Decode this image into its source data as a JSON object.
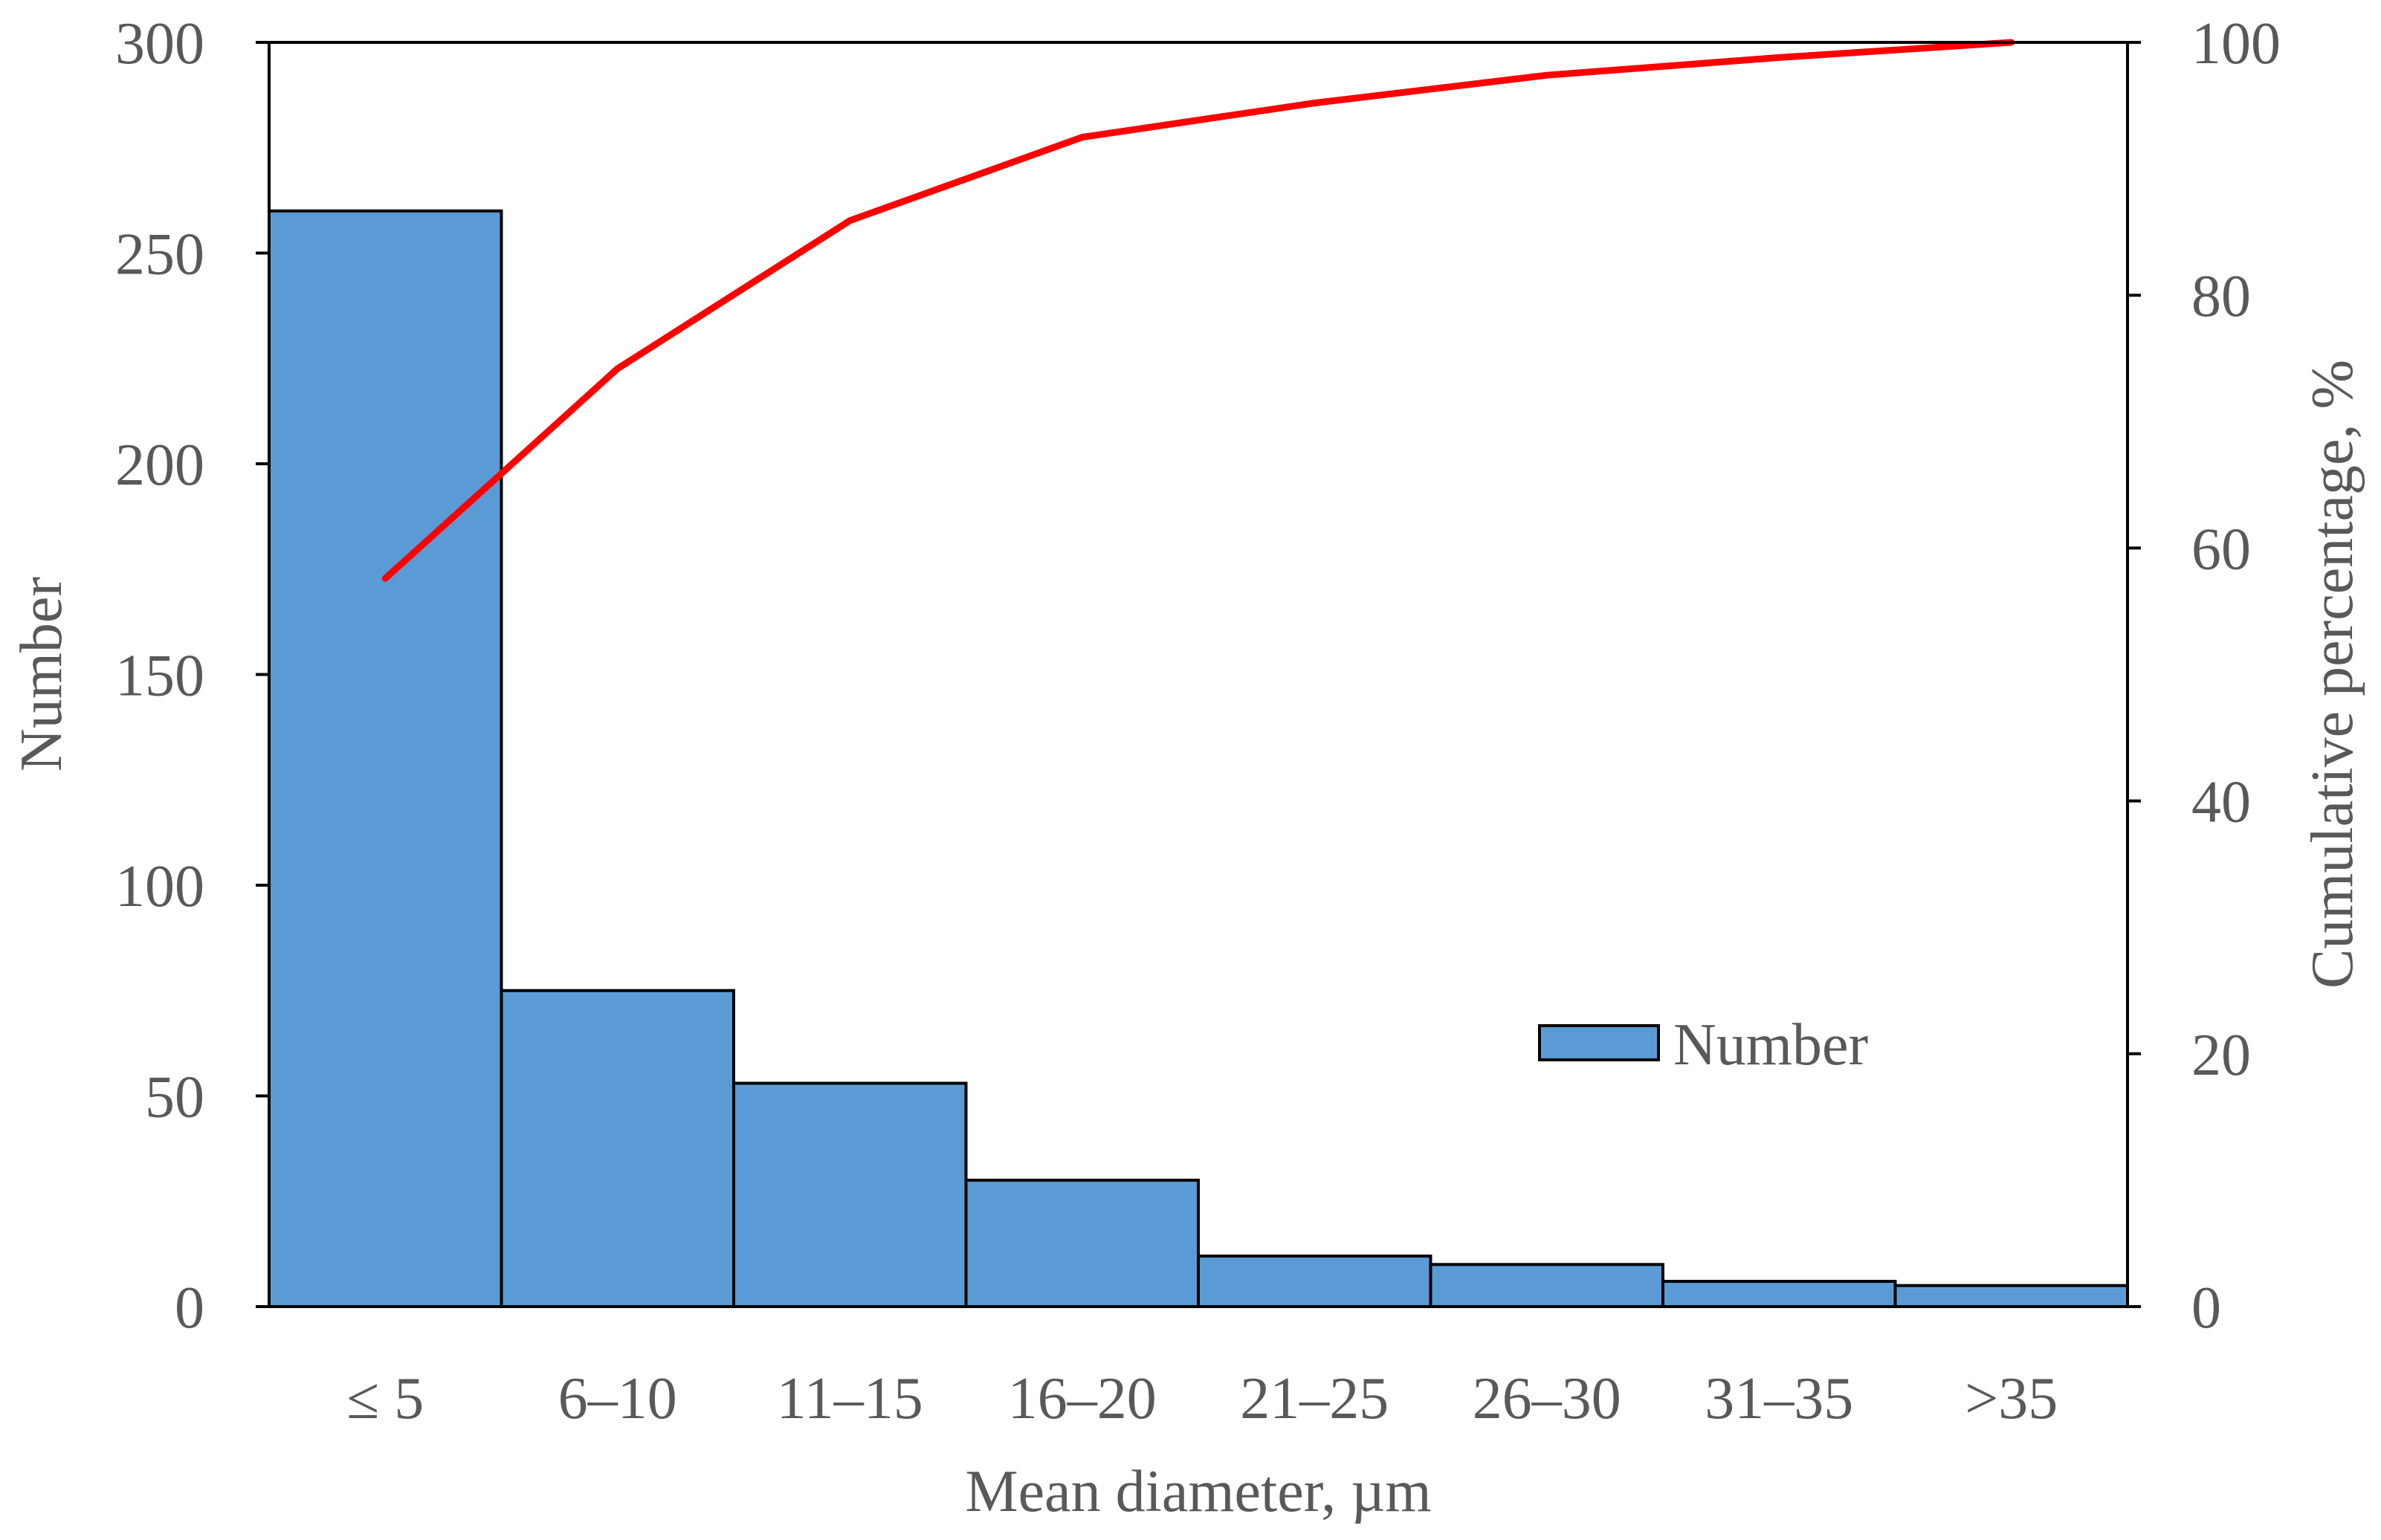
{
  "chart_data": {
    "type": "bar",
    "categories": [
      "≤ 5",
      "6–10",
      "11–15",
      "16–20",
      "21–25",
      "26–30",
      "31–35",
      ">35"
    ],
    "series": [
      {
        "name": "Number",
        "type": "bar",
        "axis": "left",
        "color": "#5B9BD5",
        "values": [
          260,
          75,
          53,
          30,
          12,
          10,
          6,
          5
        ]
      },
      {
        "type": "line",
        "axis": "right",
        "color": "#FF0000",
        "values": [
          57.6,
          74.2,
          85.9,
          92.5,
          95.2,
          97.4,
          98.8,
          100
        ]
      }
    ],
    "xlabel": "Mean diameter, µm",
    "ylabel": "Number",
    "y2label": "Cumulative percentage, %",
    "ylim": [
      0,
      300
    ],
    "y2lim": [
      0,
      100
    ],
    "yticks": [
      "0",
      "50",
      "100",
      "150",
      "200",
      "250",
      "300"
    ],
    "y2ticks": [
      "0",
      "20",
      "40",
      "60",
      "80",
      "100"
    ],
    "grid": false,
    "legend": {
      "position": "right",
      "label": "Number"
    }
  }
}
